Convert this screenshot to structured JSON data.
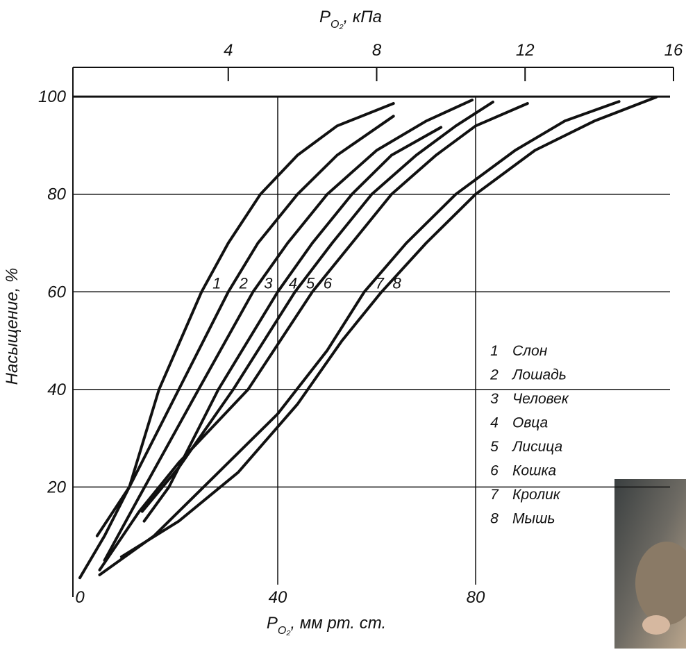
{
  "chart_data": {
    "type": "line",
    "x_label": {
      "symbol": "P",
      "subscript": "O₂",
      "unit": ", мм рт. ст."
    },
    "x2_label": {
      "symbol": "P",
      "subscript": "O₂",
      "unit": ", кПа"
    },
    "y_label": "Насыщение, %",
    "xlim": [
      0,
      120
    ],
    "xticks": [
      0,
      40,
      80
    ],
    "x2lim": [
      0,
      16
    ],
    "x2ticks": [
      4,
      8,
      12,
      16
    ],
    "ylim": [
      0,
      106
    ],
    "yticks": [
      20,
      40,
      60,
      80,
      100
    ],
    "grid": true,
    "color": "#111111",
    "series": [
      {
        "label": "1",
        "name": "Слон",
        "x": [
          0,
          5,
          10,
          16,
          24.6,
          30,
          36.5,
          44,
          52,
          63.4
        ],
        "values": [
          1.4,
          10,
          20,
          40,
          60,
          70,
          80,
          88,
          94,
          98.6
        ]
      },
      {
        "label": "2",
        "name": "Лошадь",
        "x": [
          3.5,
          10,
          20,
          30,
          36,
          44,
          52,
          63.4
        ],
        "values": [
          10,
          20,
          40,
          60,
          70,
          80,
          88,
          96
        ]
      },
      {
        "label": "3",
        "name": "Человек",
        "x": [
          5,
          12,
          24,
          35,
          42,
          50,
          60,
          70,
          79.3
        ],
        "values": [
          5,
          18,
          40,
          60,
          70,
          80,
          89,
          95,
          99.3
        ]
      },
      {
        "label": "4",
        "name": "Овца",
        "x": [
          13,
          18,
          28,
          40,
          47,
          55,
          63,
          73
        ],
        "values": [
          13,
          20,
          40,
          60,
          70,
          80,
          88,
          93.7
        ]
      },
      {
        "label": "5",
        "name": "Лисица",
        "x": [
          12.6,
          20,
          31,
          43.5,
          51,
          59,
          68,
          76,
          83.5
        ],
        "values": [
          15,
          24,
          40,
          60,
          70,
          80,
          88,
          94,
          98.9
        ]
      },
      {
        "label": "6",
        "name": "Кошка",
        "x": [
          4,
          12,
          20,
          34,
          47,
          55,
          63,
          72,
          80,
          90.5
        ],
        "values": [
          3,
          15,
          25,
          40,
          60,
          70,
          80,
          88,
          94,
          98.6
        ]
      },
      {
        "label": "7",
        "name": "Кролик",
        "x": [
          4,
          15,
          27,
          40,
          50,
          57.5,
          66,
          76,
          88,
          98,
          109
        ],
        "values": [
          2,
          10,
          22,
          35,
          48,
          60,
          70,
          80,
          89,
          95,
          99
        ]
      },
      {
        "label": "8",
        "name": "Мышь",
        "x": [
          8.4,
          20,
          32,
          44,
          53,
          61,
          70,
          80,
          92,
          104,
          116.5
        ],
        "values": [
          5.7,
          13,
          23,
          37,
          50,
          60,
          70,
          80,
          89,
          95,
          99.9
        ]
      }
    ]
  }
}
